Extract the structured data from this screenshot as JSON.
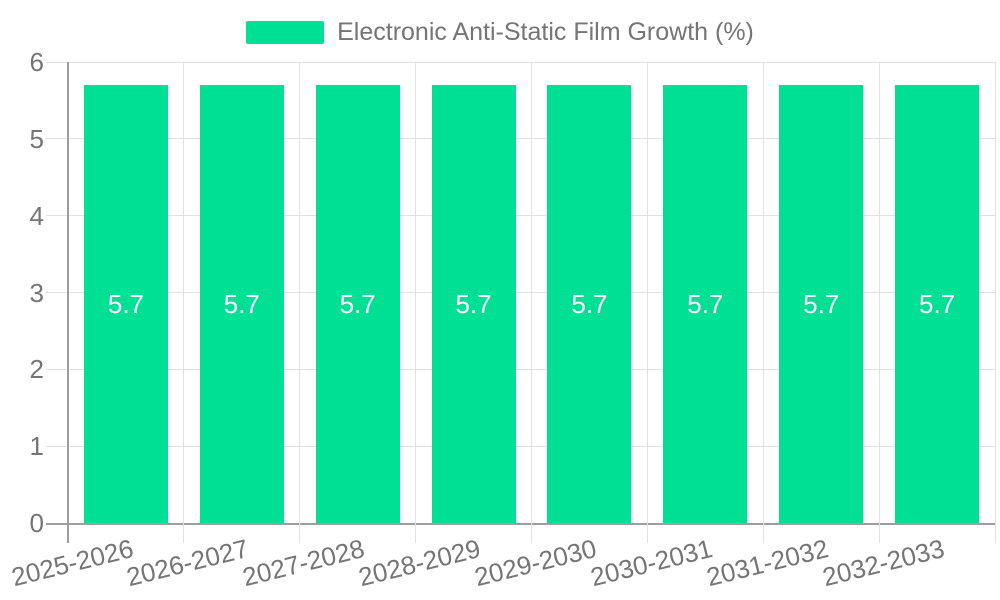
{
  "legend": {
    "label": "Electronic Anti-Static Film Growth (%)"
  },
  "colors": {
    "bar": "#00E095",
    "axis_text": "#757575",
    "grid_line": "#E2E2E2",
    "axis_line": "#9E9E9E",
    "value_label_text": "#FFFFFF",
    "background": "#FFFFFF"
  },
  "chart_data": {
    "type": "bar",
    "title": "Electronic Anti-Static Film Growth (%)",
    "categories": [
      "2025-2026",
      "2026-2027",
      "2027-2028",
      "2028-2029",
      "2029-2030",
      "2030-2031",
      "2031-2032",
      "2032-2033"
    ],
    "series": [
      {
        "name": "Electronic Anti-Static Film Growth (%)",
        "values": [
          5.7,
          5.7,
          5.7,
          5.7,
          5.7,
          5.7,
          5.7,
          5.7
        ]
      }
    ],
    "xlabel": "",
    "ylabel": "",
    "ylim": [
      0,
      6
    ],
    "yticks": [
      0,
      1,
      2,
      3,
      4,
      5,
      6
    ],
    "grid": true,
    "legend_position": "top",
    "value_label_position": "inside-center",
    "x_label_rotation_deg": -14
  }
}
